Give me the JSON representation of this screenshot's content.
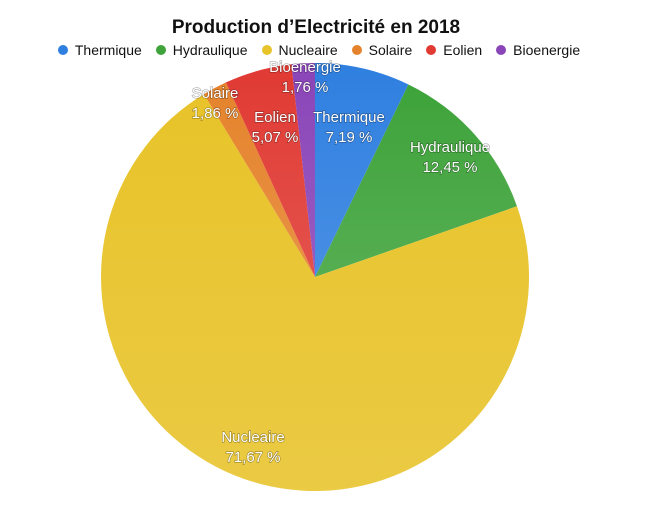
{
  "chart_data": {
    "type": "pie",
    "title": "Production d’Electricité en 2018",
    "legend_position": "top",
    "slices": [
      {
        "name": "Thermique",
        "value": 7.19,
        "label": "7,19 %",
        "color": "#2f7fe0"
      },
      {
        "name": "Hydraulique",
        "value": 12.45,
        "label": "12,45 %",
        "color": "#3ea33a"
      },
      {
        "name": "Nucleaire",
        "value": 71.67,
        "label": "71,67 %",
        "color": "#e8c32a"
      },
      {
        "name": "Solaire",
        "value": 1.86,
        "label": "1,86 %",
        "color": "#e5832c"
      },
      {
        "name": "Eolien",
        "value": 5.07,
        "label": "5,07 %",
        "color": "#e03a33"
      },
      {
        "name": "Bioenergie",
        "value": 1.76,
        "label": "1,76 %",
        "color": "#8a45b8"
      }
    ]
  }
}
